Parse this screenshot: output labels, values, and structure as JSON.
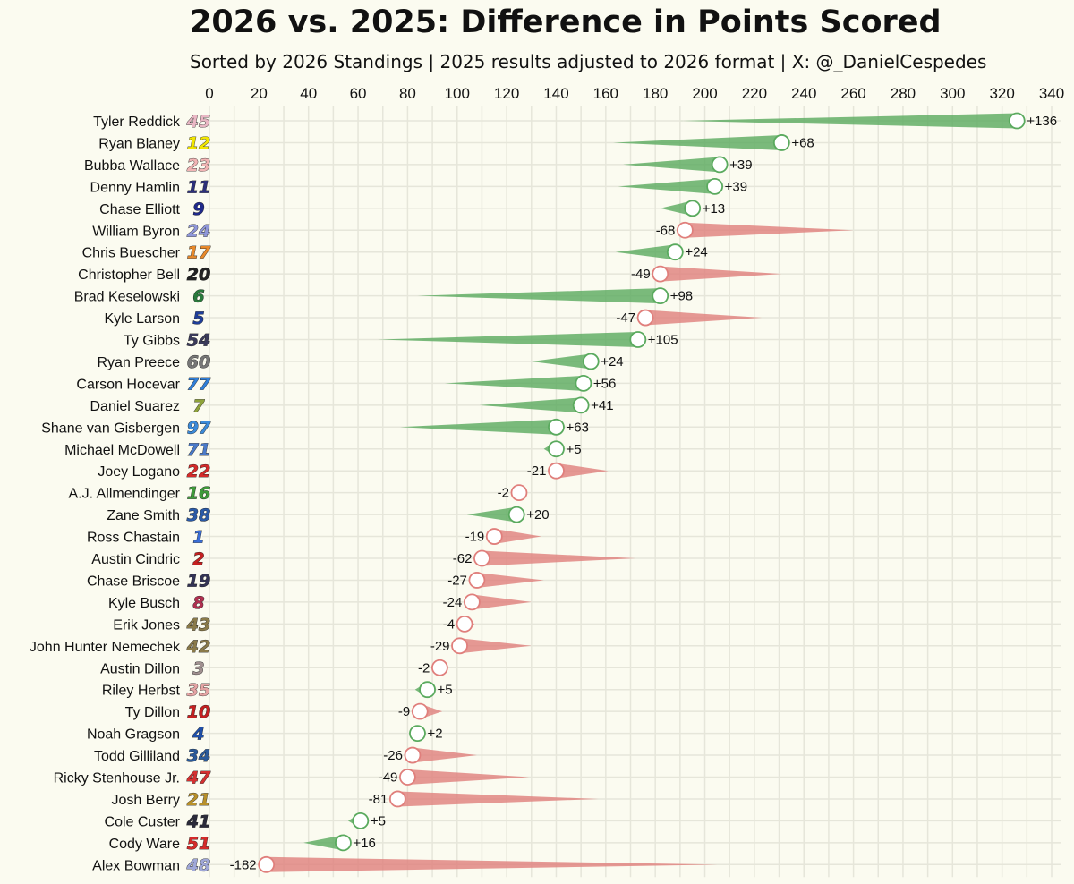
{
  "chart_data": {
    "type": "bar",
    "title": "2026 vs. 2025: Difference in Points Scored",
    "subtitle": "Sorted by 2026 Standings | 2025 results adjusted to 2026 format | X: @_DanielCespedes",
    "xlim": [
      0,
      340
    ],
    "xticks": [
      0,
      20,
      40,
      60,
      80,
      100,
      120,
      140,
      160,
      180,
      200,
      220,
      240,
      260,
      280,
      300,
      320,
      340
    ],
    "positive_color": "#5aaa5e",
    "negative_color": "#e07f7c",
    "drivers": [
      {
        "name": "Tyler Reddick",
        "number": "45",
        "color": "#e9b7c4",
        "points_2026": 326,
        "points_2025": 190,
        "diff": "+136"
      },
      {
        "name": "Ryan Blaney",
        "number": "12",
        "color": "#f2e600",
        "points_2026": 231,
        "points_2025": 163,
        "diff": "+68"
      },
      {
        "name": "Bubba Wallace",
        "number": "23",
        "color": "#f1b4b4",
        "points_2026": 206,
        "points_2025": 167,
        "diff": "+39"
      },
      {
        "name": "Denny Hamlin",
        "number": "11",
        "color": "#2c2f7a",
        "points_2026": 204,
        "points_2025": 165,
        "diff": "+39"
      },
      {
        "name": "Chase Elliott",
        "number": "9",
        "color": "#1f2a8c",
        "points_2026": 195,
        "points_2025": 182,
        "diff": "+13"
      },
      {
        "name": "William Byron",
        "number": "24",
        "color": "#8f97d8",
        "points_2026": 192,
        "points_2025": 260,
        "diff": "-68"
      },
      {
        "name": "Chris Buescher",
        "number": "17",
        "color": "#e8892a",
        "points_2026": 188,
        "points_2025": 164,
        "diff": "+24"
      },
      {
        "name": "Christopher Bell",
        "number": "20",
        "color": "#222222",
        "points_2026": 182,
        "points_2025": 231,
        "diff": "-49"
      },
      {
        "name": "Brad Keselowski",
        "number": "6",
        "color": "#2a7a3c",
        "points_2026": 182,
        "points_2025": 84,
        "diff": "+98"
      },
      {
        "name": "Kyle Larson",
        "number": "5",
        "color": "#1f3e9a",
        "points_2026": 176,
        "points_2025": 223,
        "diff": "-47"
      },
      {
        "name": "Ty Gibbs",
        "number": "54",
        "color": "#3a3a5a",
        "points_2026": 173,
        "points_2025": 68,
        "diff": "+105"
      },
      {
        "name": "Ryan Preece",
        "number": "60",
        "color": "#777777",
        "points_2026": 154,
        "points_2025": 130,
        "diff": "+24"
      },
      {
        "name": "Carson Hocevar",
        "number": "77",
        "color": "#2f7ed8",
        "points_2026": 151,
        "points_2025": 95,
        "diff": "+56"
      },
      {
        "name": "Daniel Suarez",
        "number": "7",
        "color": "#8fa33a",
        "points_2026": 150,
        "points_2025": 109,
        "diff": "+41"
      },
      {
        "name": "Shane van Gisbergen",
        "number": "97",
        "color": "#3b8ad9",
        "points_2026": 140,
        "points_2025": 77,
        "diff": "+63"
      },
      {
        "name": "Michael McDowell",
        "number": "71",
        "color": "#4a7ac9",
        "points_2026": 140,
        "points_2025": 135,
        "diff": "+5"
      },
      {
        "name": "Joey Logano",
        "number": "22",
        "color": "#d42a2a",
        "points_2026": 140,
        "points_2025": 161,
        "diff": "-21"
      },
      {
        "name": "A.J. Allmendinger",
        "number": "16",
        "color": "#3f9a3a",
        "points_2026": 125,
        "points_2025": 127,
        "diff": "-2"
      },
      {
        "name": "Zane Smith",
        "number": "38",
        "color": "#2a5aa8",
        "points_2026": 124,
        "points_2025": 104,
        "diff": "+20"
      },
      {
        "name": "Ross Chastain",
        "number": "1",
        "color": "#3a6ed8",
        "points_2026": 115,
        "points_2025": 134,
        "diff": "-19"
      },
      {
        "name": "Austin Cindric",
        "number": "2",
        "color": "#c42020",
        "points_2026": 110,
        "points_2025": 172,
        "diff": "-62"
      },
      {
        "name": "Chase Briscoe",
        "number": "19",
        "color": "#333355",
        "points_2026": 108,
        "points_2025": 135,
        "diff": "-27"
      },
      {
        "name": "Kyle Busch",
        "number": "8",
        "color": "#b03050",
        "points_2026": 106,
        "points_2025": 130,
        "diff": "-24"
      },
      {
        "name": "Erik Jones",
        "number": "43",
        "color": "#8a7a4a",
        "points_2026": 103,
        "points_2025": 107,
        "diff": "-4"
      },
      {
        "name": "John Hunter Nemechek",
        "number": "42",
        "color": "#8a7a4a",
        "points_2026": 101,
        "points_2025": 130,
        "diff": "-29"
      },
      {
        "name": "Austin Dillon",
        "number": "3",
        "color": "#a09090",
        "points_2026": 93,
        "points_2025": 95,
        "diff": "-2"
      },
      {
        "name": "Riley Herbst",
        "number": "35",
        "color": "#e4a4a4",
        "points_2026": 88,
        "points_2025": 83,
        "diff": "+5"
      },
      {
        "name": "Ty Dillon",
        "number": "10",
        "color": "#c42020",
        "points_2026": 85,
        "points_2025": 94,
        "diff": "-9"
      },
      {
        "name": "Noah Gragson",
        "number": "4",
        "color": "#1f4fa8",
        "points_2026": 84,
        "points_2025": 82,
        "diff": "+2"
      },
      {
        "name": "Todd Gilliland",
        "number": "34",
        "color": "#2a5a9a",
        "points_2026": 82,
        "points_2025": 108,
        "diff": "-26"
      },
      {
        "name": "Ricky Stenhouse Jr.",
        "number": "47",
        "color": "#d43030",
        "points_2026": 80,
        "points_2025": 129,
        "diff": "-49"
      },
      {
        "name": "Josh Berry",
        "number": "21",
        "color": "#b8902a",
        "points_2026": 76,
        "points_2025": 157,
        "diff": "-81"
      },
      {
        "name": "Cole Custer",
        "number": "41",
        "color": "#2a2a3a",
        "points_2026": 61,
        "points_2025": 56,
        "diff": "+5"
      },
      {
        "name": "Cody Ware",
        "number": "51",
        "color": "#d42a2a",
        "points_2026": 54,
        "points_2025": 38,
        "diff": "+16"
      },
      {
        "name": "Alex Bowman",
        "number": "48",
        "color": "#a0a8d8",
        "points_2026": 23,
        "points_2025": 205,
        "diff": "-182"
      }
    ]
  }
}
